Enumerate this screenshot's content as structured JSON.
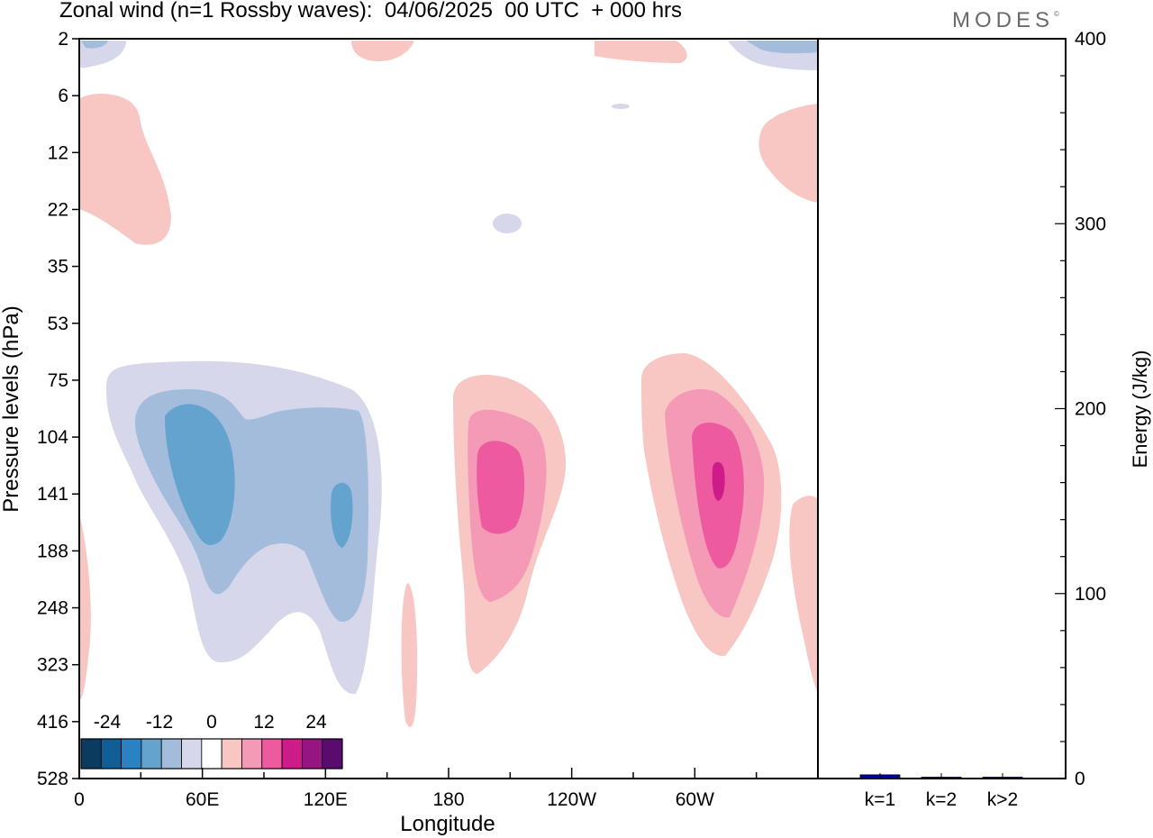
{
  "title": "Zonal wind (n=1 Rossby waves):  04/06/2025  00 UTC  + 000 hrs",
  "brand": "MODES",
  "brand_mark": "©",
  "colors": {
    "neg": [
      "#0b3b5e",
      "#0f5f96",
      "#2a83c0",
      "#65a3cf",
      "#a3bcdb",
      "#d6d7ea"
    ],
    "pos": [
      "#f8c7c3",
      "#f59ab6",
      "#ee5aa0",
      "#cd1b8a",
      "#961583",
      "#5a0b6e"
    ],
    "zero": "#ffffff",
    "bar": "#0000a0"
  },
  "chart_data": [
    {
      "type": "heatmap",
      "title": "Zonal wind (n=1 Rossby waves):  04/06/2025  00 UTC  + 000 hrs",
      "xlabel": "Longitude",
      "ylabel": "Pressure levels (hPa)",
      "x_ticks": [
        "0",
        "60E",
        "120E",
        "180",
        "120W",
        "60W"
      ],
      "y_ticks": [
        "2",
        "6",
        "12",
        "22",
        "35",
        "53",
        "75",
        "104",
        "141",
        "188",
        "248",
        "323",
        "416",
        "528"
      ],
      "colorbar": {
        "labels": [
          "-24",
          "-12",
          "0",
          "12",
          "24"
        ],
        "levels": [
          -30,
          -25,
          -20,
          -15,
          -10,
          -5,
          0,
          5,
          10,
          15,
          20,
          25,
          30
        ]
      },
      "features": [
        {
          "sign": "negative",
          "peak": -15,
          "lon_range": [
            15,
            145
          ],
          "pressure_range": [
            75,
            416
          ],
          "centre": {
            "lon": 60,
            "pressure": 141
          }
        },
        {
          "sign": "positive",
          "peak": 15,
          "lon_range": [
            170,
            240
          ],
          "pressure_range": [
            75,
            323
          ],
          "centre": {
            "lon": 200,
            "pressure": 141
          }
        },
        {
          "sign": "positive",
          "peak": 20,
          "lon_range": [
            265,
            340
          ],
          "pressure_range": [
            75,
            323
          ],
          "centre": {
            "lon": 300,
            "pressure": 141
          }
        }
      ]
    },
    {
      "type": "bar",
      "categories": [
        "k=1",
        "k=2",
        "k>2"
      ],
      "values": [
        2,
        0.5,
        0.5
      ],
      "ylabel": "Energy (J/kg)",
      "ylim": [
        0,
        400
      ],
      "y_ticks": [
        "0",
        "100",
        "200",
        "300",
        "400"
      ]
    }
  ]
}
